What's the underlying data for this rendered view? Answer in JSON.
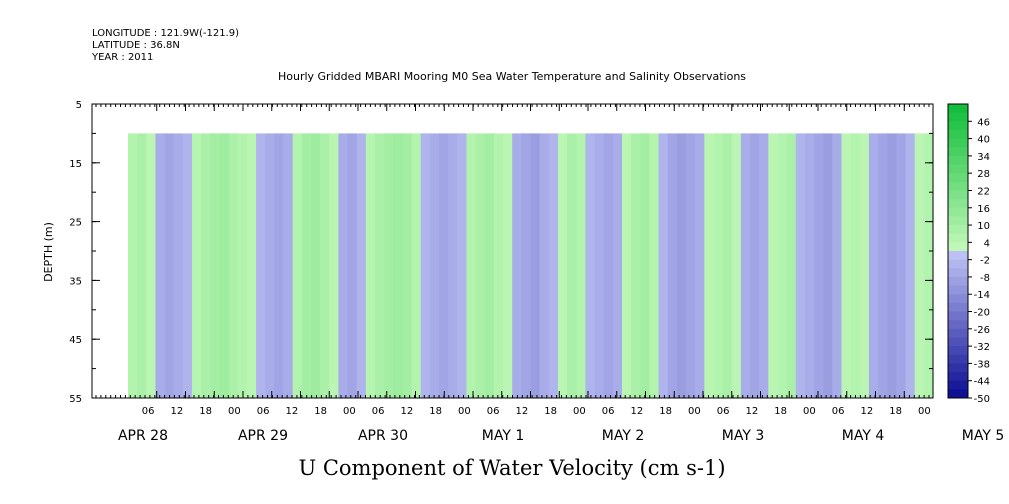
{
  "header": {
    "longitude": "LONGITUDE : 121.9W(-121.9)",
    "latitude": "LATITUDE : 36.8N",
    "year": "YEAR : 2011"
  },
  "chart_data": {
    "type": "heatmap",
    "title": "Hourly Gridded MBARI Mooring M0 Sea Water Temperature and Salinity Observations",
    "caption": "U Component of Water Velocity (cm s-1)",
    "ylabel": "DEPTH (m)",
    "y_ticks": [
      "5",
      "15",
      "25",
      "35",
      "45",
      "55"
    ],
    "y_tick_values": [
      5,
      15,
      25,
      35,
      45,
      55
    ],
    "ylim": [
      5,
      55
    ],
    "y_inverted": true,
    "data_depth_range": [
      10,
      55
    ],
    "hour_ticks": [
      "06",
      "12",
      "18",
      "00",
      "06",
      "12",
      "18",
      "00",
      "06",
      "12",
      "18",
      "00",
      "06",
      "12",
      "18",
      "00",
      "06",
      "12",
      "18",
      "00",
      "06",
      "12",
      "18",
      "00",
      "06",
      "12",
      "18",
      "00"
    ],
    "day_labels": [
      "APR 28",
      "APR 29",
      "APR 30",
      "MAY  1",
      "MAY  2",
      "MAY  3",
      "MAY  4",
      "MAY  5"
    ],
    "colorbar": {
      "labels": [
        "46",
        "40",
        "34",
        "28",
        "22",
        "16",
        "10",
        "4",
        "-2",
        "-8",
        "-14",
        "-20",
        "-26",
        "-32",
        "-38",
        "-44",
        "-50"
      ],
      "values": [
        46,
        40,
        34,
        28,
        22,
        16,
        10,
        4,
        -2,
        -8,
        -14,
        -20,
        -26,
        -32,
        -38,
        -44,
        -50
      ],
      "range": [
        -50,
        52
      ],
      "positive_color": "#22c34a",
      "negative_color": "#7f8ef0"
    },
    "grid": false,
    "time_columns_description": "alternating bands of positive (green) and negative (blue) U velocity",
    "column_values": [
      6,
      8,
      4,
      -6,
      -8,
      -6,
      -4,
      5,
      8,
      10,
      12,
      8,
      6,
      4,
      -4,
      -6,
      -8,
      -6,
      6,
      10,
      12,
      8,
      4,
      -6,
      -8,
      -4,
      5,
      8,
      10,
      12,
      10,
      6,
      -4,
      -6,
      -8,
      -6,
      -4,
      6,
      8,
      10,
      6,
      4,
      -6,
      -8,
      -10,
      -6,
      -4,
      4,
      8,
      6,
      -4,
      -6,
      -8,
      -6,
      4,
      8,
      10,
      6,
      -4,
      -8,
      -10,
      -8,
      -6,
      4,
      6,
      8,
      4,
      -6,
      -8,
      -6,
      4,
      6,
      8,
      -4,
      -6,
      -8,
      -10,
      -6,
      4,
      6,
      4,
      -6,
      -8,
      -10,
      -8,
      -4,
      4,
      6
    ]
  }
}
